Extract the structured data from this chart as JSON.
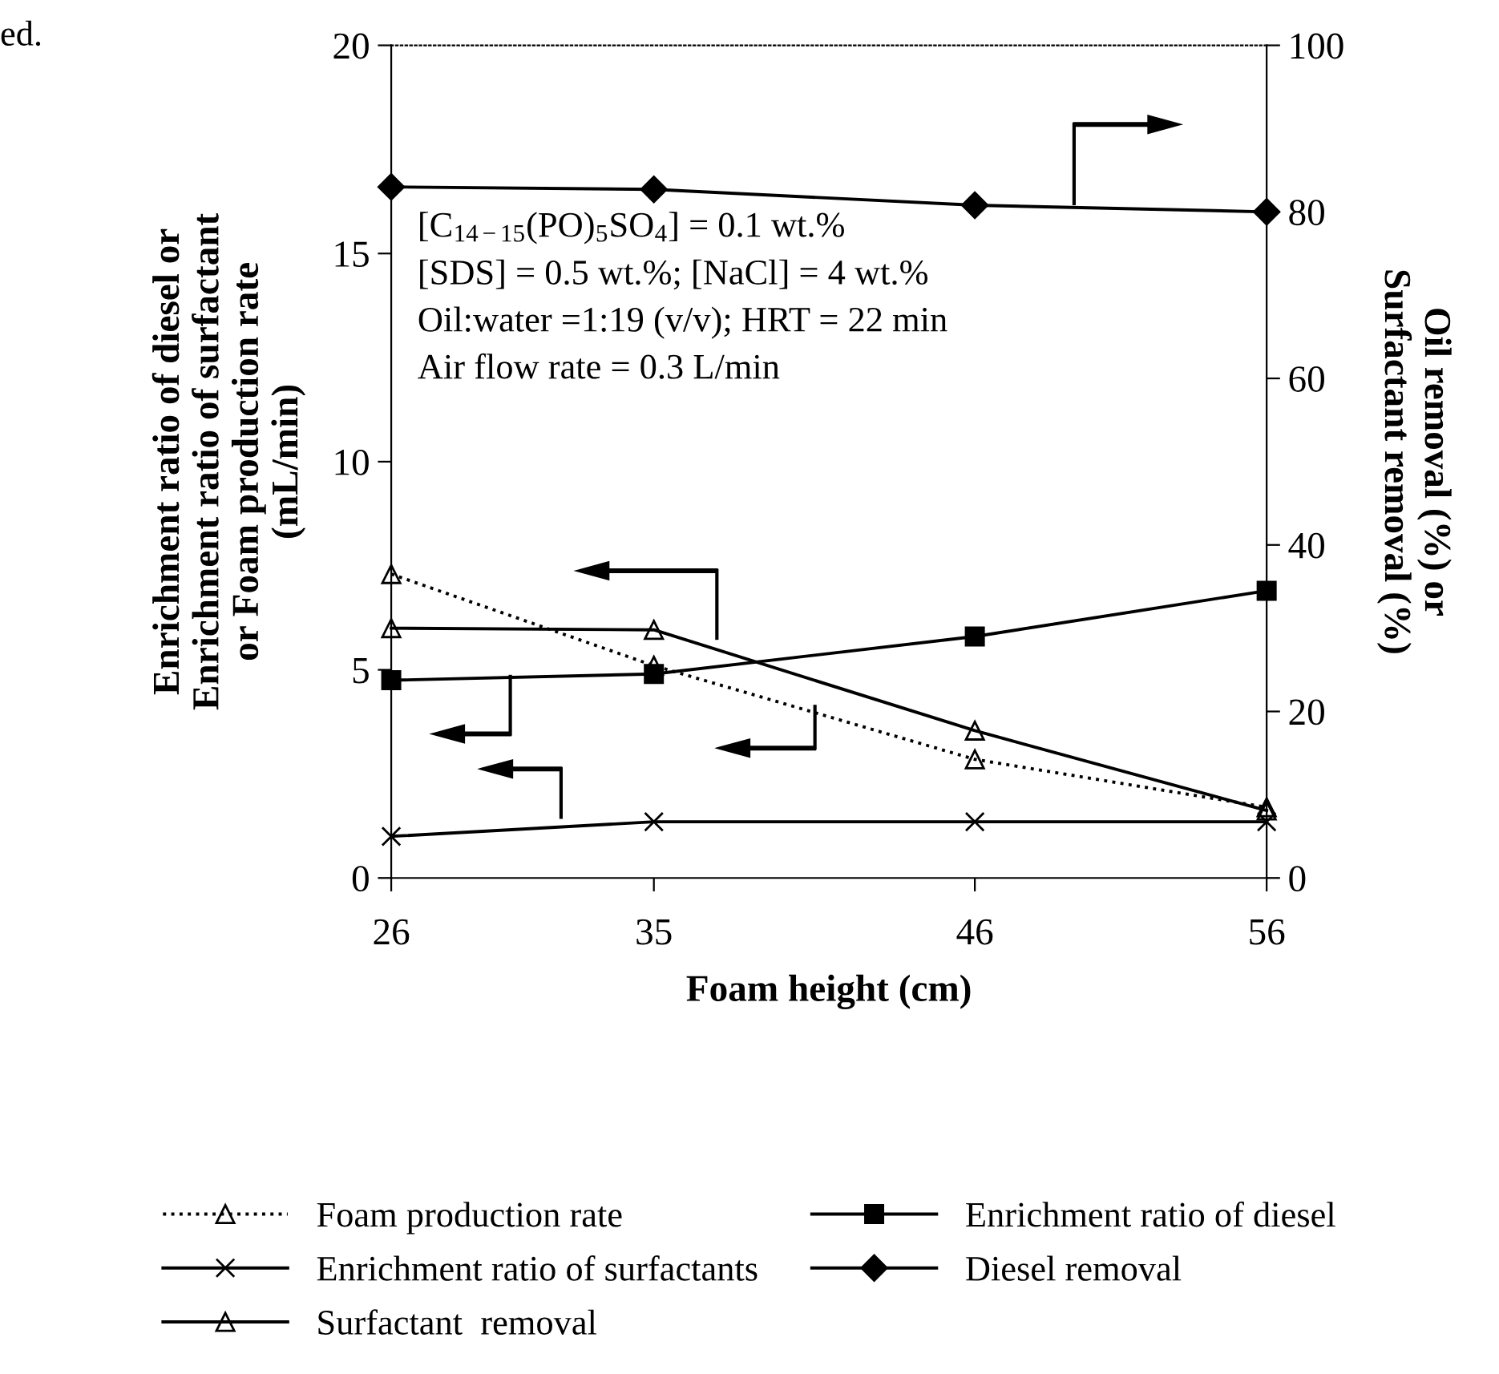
{
  "chart_data": {
    "type": "line",
    "xlabel": "Foam height (cm)",
    "ylabel": "Enrichment ratio of diesel or\nEnrichment ratio of surfactant\nor Foam production rate\n(mL/min)",
    "y2label": "Oil removal (%) or\nSurfactant removal (%)",
    "x": [
      26,
      35,
      46,
      56
    ],
    "xlim": [
      26,
      56
    ],
    "xticks": [
      26,
      35,
      46,
      56
    ],
    "ylim": [
      0,
      20
    ],
    "yticks": [
      0,
      5,
      10,
      15,
      20
    ],
    "y2lim": [
      0,
      100
    ],
    "y2ticks": [
      0,
      20,
      40,
      60,
      80,
      100
    ],
    "legend": "bottom",
    "grid": false,
    "series": [
      {
        "name": "Foam production rate",
        "color": "#000000",
        "marker": "triangle",
        "line_style": "dotted",
        "values": [
          7.3,
          5.1,
          2.85,
          1.7
        ]
      },
      {
        "name": "Enrichment ratio of diesel",
        "color": "#000000",
        "marker": "square",
        "line_style": "solid",
        "values": [
          4.75,
          4.9,
          5.8,
          6.9
        ]
      },
      {
        "name": "Enrichment ratio of surfactants",
        "color": "#000000",
        "marker": "cross",
        "line_style": "solid",
        "values": [
          1.0,
          1.35,
          1.35,
          1.35
        ]
      },
      {
        "name": "Diesel removal",
        "color": "#000000",
        "marker": "diamond",
        "line_style": "solid",
        "axis": "y2",
        "values": [
          83,
          82.7,
          80.8,
          80
        ]
      },
      {
        "name": "Surfactant  removal",
        "color": "#000000",
        "marker": "triangle",
        "line_style": "solid",
        "axis": "y2",
        "values": [
          30,
          29.8,
          17.7,
          8.1
        ]
      }
    ],
    "annotations": [
      "ed.",
      "[C$_{14−15}$(PO)$_{5}$SO$_{4}$] = 0.1 wt.%\n[SDS] = 0.5 wt.%; [NaCl] = 4 wt.%\nOil:water =1:19 (v/v); HRT = 22 min\nAir flow rate = 0.3 L/min"
    ]
  }
}
